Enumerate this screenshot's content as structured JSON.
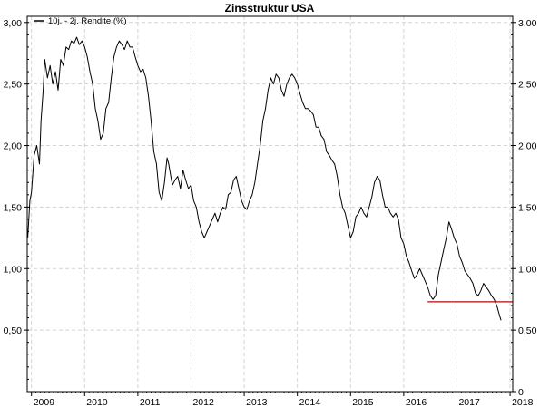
{
  "chart_data": {
    "type": "line",
    "title": "Zinsstruktur USA",
    "xlabel": "",
    "ylabel": "",
    "xlim": [
      2008.92,
      2018.05
    ],
    "ylim": [
      0,
      3.05
    ],
    "x_ticks": [
      "2009",
      "2010",
      "2011",
      "2012",
      "2013",
      "2014",
      "2015",
      "2016",
      "2017",
      "2018"
    ],
    "y_ticks": [
      "0,50",
      "1,00",
      "1,50",
      "2,00",
      "2,50",
      "3,00"
    ],
    "y_ticks_right": [
      "0",
      "0,50",
      "1,00",
      "1,50",
      "2,00",
      "2,50",
      "3,00"
    ],
    "grid": true,
    "legend_position": "top-left",
    "series": [
      {
        "name": "10j. - 2j. Rendite (%)",
        "color": "#000000",
        "x": [
          2008.93,
          2008.97,
          2009.0,
          2009.05,
          2009.1,
          2009.15,
          2009.18,
          2009.22,
          2009.25,
          2009.3,
          2009.35,
          2009.4,
          2009.45,
          2009.5,
          2009.55,
          2009.6,
          2009.65,
          2009.7,
          2009.75,
          2009.8,
          2009.85,
          2009.9,
          2009.95,
          2010.0,
          2010.05,
          2010.1,
          2010.15,
          2010.2,
          2010.25,
          2010.3,
          2010.35,
          2010.4,
          2010.45,
          2010.5,
          2010.55,
          2010.6,
          2010.65,
          2010.7,
          2010.75,
          2010.8,
          2010.85,
          2010.9,
          2010.95,
          2011.0,
          2011.05,
          2011.1,
          2011.15,
          2011.2,
          2011.25,
          2011.3,
          2011.35,
          2011.4,
          2011.45,
          2011.5,
          2011.55,
          2011.58,
          2011.62,
          2011.65,
          2011.7,
          2011.75,
          2011.8,
          2011.85,
          2011.9,
          2011.95,
          2012.0,
          2012.05,
          2012.1,
          2012.15,
          2012.2,
          2012.25,
          2012.3,
          2012.35,
          2012.4,
          2012.45,
          2012.5,
          2012.55,
          2012.6,
          2012.65,
          2012.7,
          2012.75,
          2012.8,
          2012.85,
          2012.9,
          2012.95,
          2013.0,
          2013.05,
          2013.1,
          2013.15,
          2013.2,
          2013.25,
          2013.3,
          2013.35,
          2013.4,
          2013.45,
          2013.5,
          2013.55,
          2013.6,
          2013.65,
          2013.7,
          2013.75,
          2013.8,
          2013.85,
          2013.9,
          2013.95,
          2014.0,
          2014.05,
          2014.1,
          2014.15,
          2014.2,
          2014.25,
          2014.3,
          2014.35,
          2014.4,
          2014.45,
          2014.5,
          2014.55,
          2014.6,
          2014.65,
          2014.7,
          2014.75,
          2014.8,
          2014.85,
          2014.9,
          2014.95,
          2015.0,
          2015.05,
          2015.1,
          2015.15,
          2015.2,
          2015.25,
          2015.3,
          2015.35,
          2015.4,
          2015.45,
          2015.5,
          2015.55,
          2015.6,
          2015.65,
          2015.7,
          2015.75,
          2015.8,
          2015.85,
          2015.9,
          2015.95,
          2016.0,
          2016.05,
          2016.1,
          2016.15,
          2016.2,
          2016.25,
          2016.3,
          2016.35,
          2016.4,
          2016.45,
          2016.5,
          2016.55,
          2016.6,
          2016.65,
          2016.7,
          2016.75,
          2016.8,
          2016.85,
          2016.9,
          2016.95,
          2017.0,
          2017.05,
          2017.1,
          2017.15,
          2017.2,
          2017.25,
          2017.3,
          2017.35,
          2017.4,
          2017.45,
          2017.5,
          2017.55,
          2017.6,
          2017.65,
          2017.7,
          2017.75,
          2017.8,
          2017.83
        ],
        "values": [
          1.25,
          1.55,
          1.62,
          1.92,
          2.0,
          1.85,
          2.2,
          2.45,
          2.7,
          2.55,
          2.65,
          2.5,
          2.6,
          2.45,
          2.7,
          2.65,
          2.8,
          2.78,
          2.85,
          2.83,
          2.88,
          2.82,
          2.85,
          2.8,
          2.72,
          2.6,
          2.5,
          2.3,
          2.2,
          2.05,
          2.1,
          2.3,
          2.35,
          2.55,
          2.72,
          2.8,
          2.85,
          2.82,
          2.78,
          2.85,
          2.8,
          2.8,
          2.72,
          2.65,
          2.6,
          2.62,
          2.55,
          2.4,
          2.2,
          1.95,
          1.85,
          1.62,
          1.55,
          1.7,
          1.9,
          1.85,
          1.75,
          1.68,
          1.72,
          1.75,
          1.65,
          1.8,
          1.72,
          1.65,
          1.68,
          1.55,
          1.5,
          1.38,
          1.3,
          1.25,
          1.3,
          1.35,
          1.4,
          1.45,
          1.38,
          1.45,
          1.5,
          1.48,
          1.6,
          1.62,
          1.72,
          1.75,
          1.65,
          1.55,
          1.5,
          1.48,
          1.55,
          1.6,
          1.7,
          1.85,
          2.0,
          2.2,
          2.3,
          2.45,
          2.55,
          2.5,
          2.58,
          2.55,
          2.45,
          2.4,
          2.5,
          2.55,
          2.58,
          2.55,
          2.5,
          2.42,
          2.35,
          2.3,
          2.3,
          2.28,
          2.25,
          2.15,
          2.15,
          2.08,
          2.05,
          1.95,
          1.92,
          1.88,
          1.85,
          1.75,
          1.6,
          1.5,
          1.45,
          1.35,
          1.25,
          1.3,
          1.42,
          1.45,
          1.5,
          1.45,
          1.42,
          1.5,
          1.58,
          1.7,
          1.75,
          1.72,
          1.6,
          1.5,
          1.5,
          1.45,
          1.42,
          1.45,
          1.4,
          1.25,
          1.2,
          1.1,
          1.05,
          0.98,
          0.92,
          0.95,
          1.0,
          0.95,
          0.9,
          0.85,
          0.78,
          0.75,
          0.78,
          0.95,
          1.05,
          1.15,
          1.25,
          1.38,
          1.32,
          1.25,
          1.2,
          1.1,
          1.05,
          0.98,
          0.95,
          0.92,
          0.88,
          0.8,
          0.78,
          0.82,
          0.88,
          0.85,
          0.82,
          0.78,
          0.75,
          0.7,
          0.62,
          0.58
        ]
      },
      {
        "name": "",
        "color": "#cc0000",
        "x": [
          2016.45,
          2018.05
        ],
        "values": [
          0.73,
          0.73
        ]
      }
    ]
  }
}
